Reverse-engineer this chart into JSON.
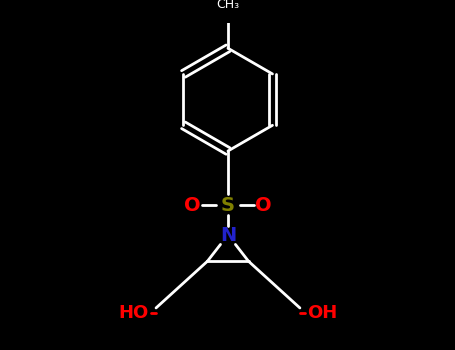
{
  "bg_color": "#000000",
  "bond_color": "#ffffff",
  "N_color": "#2222CC",
  "S_color": "#808000",
  "O_color": "#FF0000",
  "figsize": [
    4.55,
    3.5
  ],
  "dpi": 100,
  "xlim": [
    0,
    455
  ],
  "ylim": [
    0,
    350
  ]
}
